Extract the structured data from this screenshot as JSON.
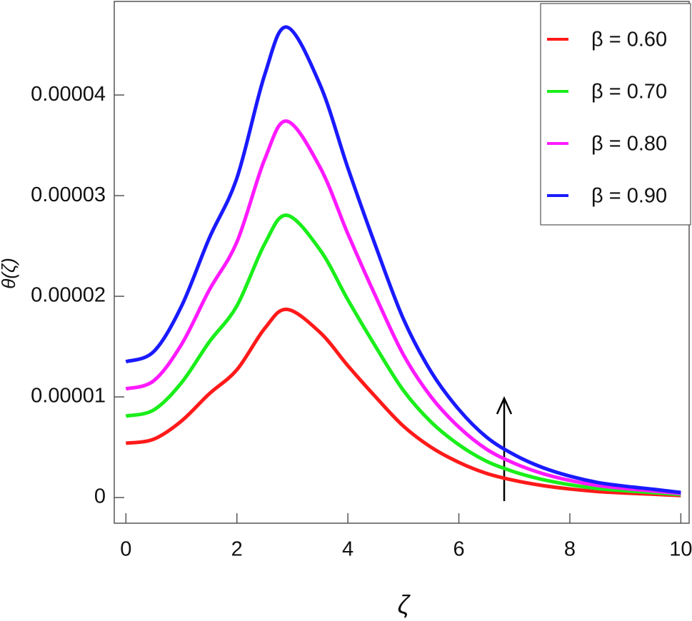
{
  "chart_data": {
    "type": "line",
    "xlabel": "ζ",
    "ylabel": "θ(ζ)",
    "x": [
      0,
      0.5,
      1,
      1.5,
      2,
      2.5,
      2.9,
      3.5,
      4,
      4.5,
      5,
      5.5,
      6,
      6.5,
      7,
      7.5,
      8,
      8.5,
      9,
      9.5,
      10
    ],
    "series": [
      {
        "name": "β = 0.60",
        "color": "#ff1a1a",
        "values": [
          5.4e-06,
          5.8e-06,
          7.6e-06,
          1.03e-05,
          1.27e-05,
          1.68e-05,
          1.87e-05,
          1.64e-05,
          1.31e-05,
          1e-05,
          7.1e-06,
          5e-06,
          3.5e-06,
          2.4e-06,
          1.7e-06,
          1.2e-06,
          8.5e-07,
          6e-07,
          4.5e-07,
          3.3e-07,
          2e-07
        ]
      },
      {
        "name": "β = 0.70",
        "color": "#1aee1a",
        "values": [
          8.1e-06,
          8.7e-06,
          1.14e-05,
          1.545e-05,
          1.905e-05,
          2.52e-05,
          2.805e-05,
          2.46e-05,
          1.965e-05,
          1.5e-05,
          1.065e-05,
          7.5e-06,
          5.25e-06,
          3.6e-06,
          2.55e-06,
          1.8e-06,
          1.275e-06,
          9e-07,
          6.75e-07,
          4.95e-07,
          3e-07
        ]
      },
      {
        "name": "β = 0.80",
        "color": "#ff1aff",
        "values": [
          1.08e-05,
          1.16e-05,
          1.52e-05,
          2.06e-05,
          2.54e-05,
          3.36e-05,
          3.74e-05,
          3.28e-05,
          2.62e-05,
          2e-05,
          1.42e-05,
          1e-05,
          7e-06,
          4.8e-06,
          3.4e-06,
          2.4e-06,
          1.7e-06,
          1.2e-06,
          9e-07,
          6.6e-07,
          4e-07
        ]
      },
      {
        "name": "β = 0.90",
        "color": "#1a1aff",
        "values": [
          1.35e-05,
          1.45e-05,
          1.9e-05,
          2.575e-05,
          3.175e-05,
          4.2e-05,
          4.675e-05,
          4.1e-05,
          3.275e-05,
          2.5e-05,
          1.775e-05,
          1.25e-05,
          8.75e-06,
          6e-06,
          4.25e-06,
          3e-06,
          2.125e-06,
          1.5e-06,
          1.125e-06,
          8.25e-07,
          5e-07
        ]
      }
    ],
    "xlim": [
      -0.21,
      10.15
    ],
    "xticks": [
      0,
      2,
      4,
      6,
      8,
      10
    ],
    "ylim": [
      -2.55e-06,
      4.93e-05
    ],
    "yticks": [
      0,
      {
        "value": 1e-05,
        "label": "0.00001"
      },
      {
        "value": 2e-05,
        "label": "0.00002"
      },
      {
        "value": 3e-05,
        "label": "0.00003"
      },
      {
        "value": 4e-05,
        "label": "0.00004"
      }
    ],
    "legend": "upper right",
    "grid": false
  }
}
